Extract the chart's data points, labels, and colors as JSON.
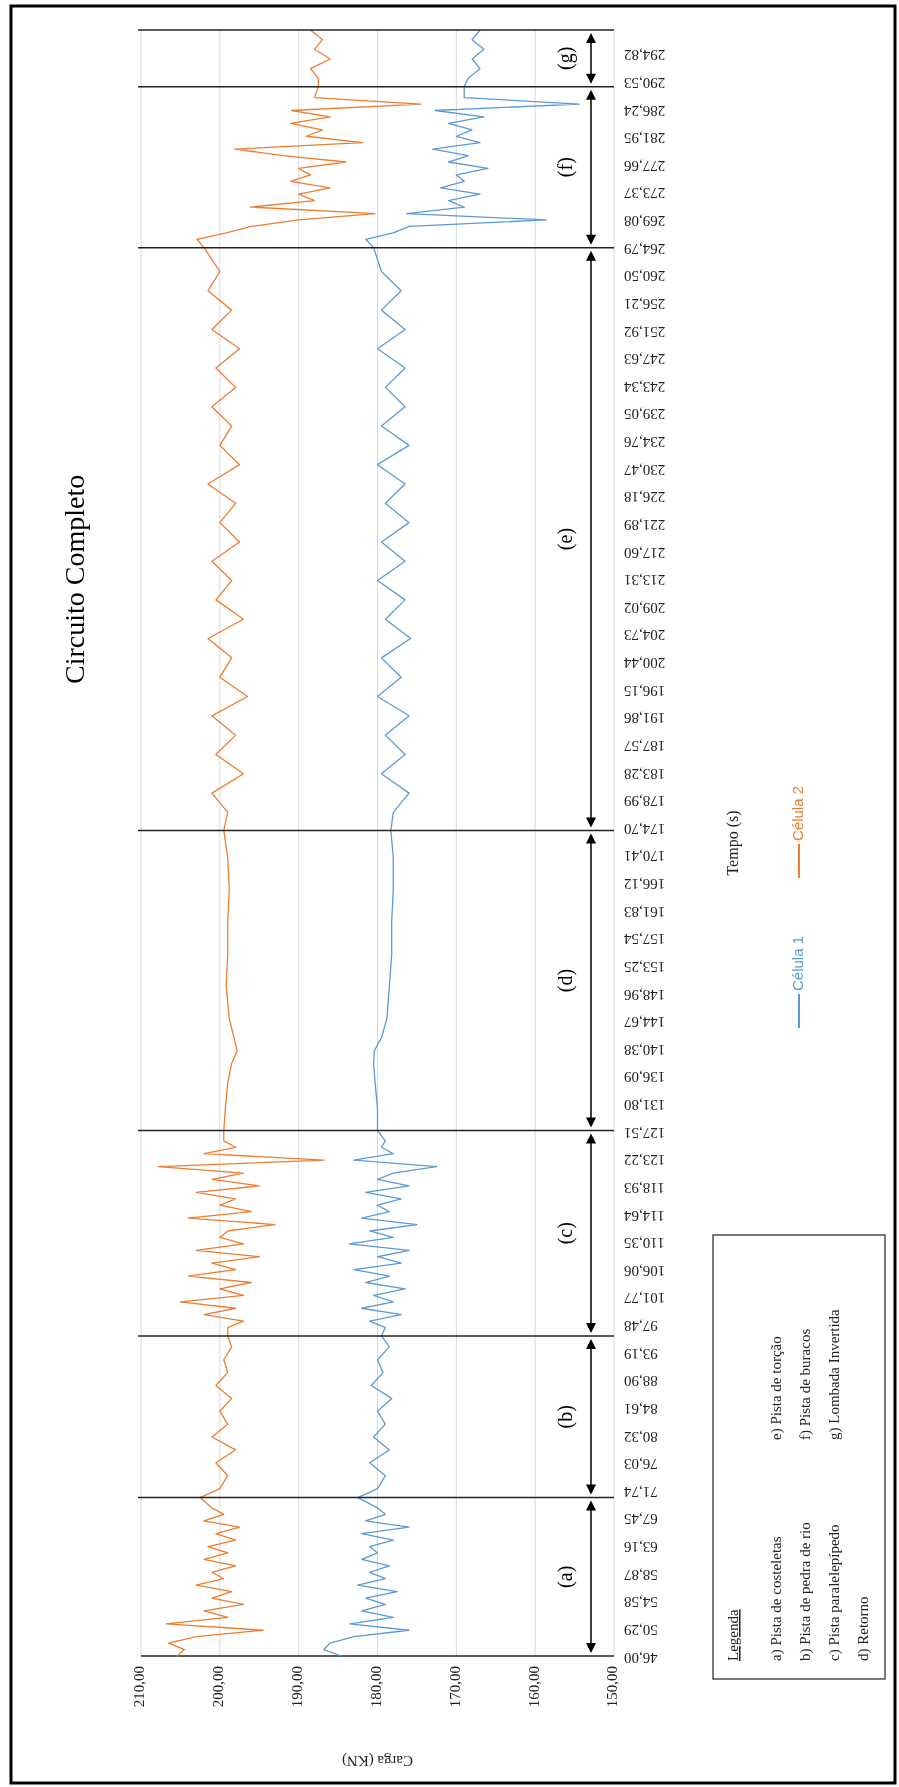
{
  "chart_data": {
    "type": "line",
    "title": "Circuito Completo",
    "xlabel": "Carga (KN)",
    "ylabel": "Tempo (s)",
    "xlim": [
      210,
      150
    ],
    "ylim": [
      46,
      298.5
    ],
    "xticks": [
      {
        "value": 210,
        "label": "210,00"
      },
      {
        "value": 200,
        "label": "200,00"
      },
      {
        "value": 190,
        "label": "190,00"
      },
      {
        "value": 180,
        "label": "180,00"
      },
      {
        "value": 170,
        "label": "170,00"
      },
      {
        "value": 160,
        "label": "160,00"
      },
      {
        "value": 150,
        "label": "150,00"
      }
    ],
    "yticks": [
      {
        "value": 46,
        "label": "46,00"
      },
      {
        "value": 50.29,
        "label": "50,29"
      },
      {
        "value": 54.58,
        "label": "54,58"
      },
      {
        "value": 58.87,
        "label": "58,87"
      },
      {
        "value": 63.16,
        "label": "63,16"
      },
      {
        "value": 67.45,
        "label": "67,45"
      },
      {
        "value": 71.74,
        "label": "71,74"
      },
      {
        "value": 76.03,
        "label": "76,03"
      },
      {
        "value": 80.32,
        "label": "80,32"
      },
      {
        "value": 84.61,
        "label": "84,61"
      },
      {
        "value": 88.9,
        "label": "88,90"
      },
      {
        "value": 93.19,
        "label": "93,19"
      },
      {
        "value": 97.48,
        "label": "97,48"
      },
      {
        "value": 101.77,
        "label": "101,77"
      },
      {
        "value": 106.06,
        "label": "106,06"
      },
      {
        "value": 110.35,
        "label": "110,35"
      },
      {
        "value": 114.64,
        "label": "114,64"
      },
      {
        "value": 118.93,
        "label": "118,93"
      },
      {
        "value": 123.22,
        "label": "123,22"
      },
      {
        "value": 127.51,
        "label": "127,51"
      },
      {
        "value": 131.8,
        "label": "131,80"
      },
      {
        "value": 136.09,
        "label": "136,09"
      },
      {
        "value": 140.38,
        "label": "140,38"
      },
      {
        "value": 144.67,
        "label": "144,67"
      },
      {
        "value": 148.96,
        "label": "148,96"
      },
      {
        "value": 153.25,
        "label": "153,25"
      },
      {
        "value": 157.54,
        "label": "157,54"
      },
      {
        "value": 161.83,
        "label": "161,83"
      },
      {
        "value": 166.12,
        "label": "166,12"
      },
      {
        "value": 170.41,
        "label": "170,41"
      },
      {
        "value": 174.7,
        "label": "174,70"
      },
      {
        "value": 178.99,
        "label": "178,99"
      },
      {
        "value": 183.28,
        "label": "183,28"
      },
      {
        "value": 187.57,
        "label": "187,57"
      },
      {
        "value": 191.86,
        "label": "191,86"
      },
      {
        "value": 196.15,
        "label": "196,15"
      },
      {
        "value": 200.44,
        "label": "200,44"
      },
      {
        "value": 204.73,
        "label": "204,73"
      },
      {
        "value": 209.02,
        "label": "209,02"
      },
      {
        "value": 213.31,
        "label": "213,31"
      },
      {
        "value": 217.6,
        "label": "217,60"
      },
      {
        "value": 221.89,
        "label": "221,89"
      },
      {
        "value": 226.18,
        "label": "226,18"
      },
      {
        "value": 230.47,
        "label": "230,47"
      },
      {
        "value": 234.76,
        "label": "234,76"
      },
      {
        "value": 239.05,
        "label": "239,05"
      },
      {
        "value": 243.34,
        "label": "243,34"
      },
      {
        "value": 247.63,
        "label": "247,63"
      },
      {
        "value": 251.92,
        "label": "251,92"
      },
      {
        "value": 256.21,
        "label": "256,21"
      },
      {
        "value": 260.5,
        "label": "260,50"
      },
      {
        "value": 264.79,
        "label": "264,79"
      },
      {
        "value": 269.08,
        "label": "269,08"
      },
      {
        "value": 273.37,
        "label": "273,37"
      },
      {
        "value": 277.66,
        "label": "277,66"
      },
      {
        "value": 281.95,
        "label": "281,95"
      },
      {
        "value": 286.24,
        "label": "286,24"
      },
      {
        "value": 290.53,
        "label": "290,53"
      },
      {
        "value": 294.82,
        "label": "294,82"
      }
    ],
    "grid": "x",
    "legend": "right",
    "series": [
      {
        "name": "Célula 1",
        "color": "#5b9bd5",
        "x": [
          184.6,
          186.8,
          186,
          183,
          176,
          183.5,
          178,
          182,
          179,
          181.5,
          177.5,
          182.5,
          179,
          181,
          178.5,
          182,
          180,
          181,
          178,
          182,
          176,
          181.5,
          179,
          180,
          182.5,
          180,
          179,
          181,
          178.5,
          180.5,
          179,
          180,
          178.2,
          180.8,
          179.3,
          180,
          178.5,
          179.5,
          179,
          181,
          177,
          182,
          178,
          180.5,
          176.5,
          181.5,
          178.5,
          183,
          177,
          180,
          176,
          183.6,
          178,
          181,
          175,
          182,
          178.5,
          180,
          177,
          181.5,
          176,
          180,
          178,
          172.5,
          183,
          178,
          179.5,
          179,
          180,
          180,
          180.3,
          180.5,
          180.4,
          179.5,
          178.8,
          178.5,
          178.2,
          178.2,
          178,
          178,
          178.3,
          178,
          176,
          179.5,
          176.5,
          179,
          176,
          180,
          177,
          179.5,
          175.8,
          179,
          176.5,
          180,
          176.5,
          179.5,
          176,
          179,
          176.5,
          180,
          176,
          179.5,
          176.5,
          179,
          176.5,
          180,
          176.5,
          179.5,
          177,
          179.5,
          180.5,
          181.5,
          178,
          176,
          158.6,
          176.3,
          169,
          171,
          167,
          172,
          169,
          170,
          166,
          171,
          168.5,
          173,
          167,
          170,
          168,
          171,
          166.5,
          172.7,
          154.4,
          169,
          169,
          168.5,
          167,
          168,
          166.5,
          168,
          167
        ],
        "values": [
          46,
          47,
          48,
          49,
          50,
          51,
          52,
          53,
          54,
          55,
          56,
          57,
          58,
          59,
          60,
          61,
          62,
          63,
          64,
          65,
          66,
          67,
          68,
          69,
          70.6,
          72,
          74,
          76,
          78,
          80,
          82,
          84,
          86,
          88,
          90,
          92,
          94,
          95.7,
          97,
          98,
          99,
          100,
          101,
          102,
          103,
          104,
          105,
          106,
          107,
          108,
          109,
          110,
          111,
          112,
          113,
          114,
          115,
          116,
          117,
          118,
          119,
          120,
          121,
          122,
          123,
          124,
          125,
          126,
          127.6,
          131,
          135,
          138,
          140,
          142,
          145,
          150,
          155,
          160,
          165,
          170,
          174.2,
          177,
          180,
          183,
          186,
          189,
          192,
          195,
          198,
          201,
          204,
          207,
          210,
          213,
          216,
          219,
          222,
          225,
          228,
          231,
          234,
          237,
          240,
          243,
          246,
          249,
          252,
          255,
          258,
          261,
          264.7,
          266,
          267,
          268,
          269,
          270,
          271,
          272,
          273,
          274,
          275,
          276,
          277,
          278,
          279,
          280,
          281,
          282,
          283,
          284,
          285,
          286,
          287,
          288,
          289.7,
          291,
          292.5,
          294,
          295.5,
          297,
          298.5
        ]
      },
      {
        "name": "Célula 2",
        "color": "#ed7d31",
        "x": [
          205.4,
          204.5,
          206.5,
          203,
          194.5,
          206.8,
          199,
          202,
          197,
          201,
          198.5,
          203,
          199.5,
          201,
          198,
          202,
          199,
          201.5,
          198,
          200.5,
          197.5,
          202,
          199.5,
          201,
          202.5,
          200,
          199,
          200.5,
          198,
          201,
          199,
          200,
          198.5,
          200.5,
          199,
          199.5,
          198.5,
          199,
          199,
          197,
          202,
          198,
          205,
          197,
          200,
          196,
          204,
          198,
          201,
          195,
          203,
          197,
          200,
          199,
          193,
          204,
          196,
          200,
          198,
          203,
          195,
          201,
          197,
          207.8,
          186.8,
          202,
          198,
          199.5,
          199.5,
          199.3,
          199,
          198.5,
          197.8,
          198.2,
          198.8,
          199.2,
          199,
          199,
          198.8,
          199,
          199.5,
          199,
          201,
          197,
          200.5,
          198,
          201,
          196.5,
          200,
          198.5,
          201.5,
          197,
          200.5,
          198.5,
          201,
          197.5,
          200,
          198,
          201.5,
          197.5,
          200,
          198.5,
          201,
          198,
          200.5,
          197.5,
          201,
          198.5,
          201.5,
          200,
          202,
          202.9,
          199.2,
          196,
          190,
          180.3,
          196.1,
          188,
          190,
          186,
          191,
          188.5,
          190,
          184,
          192,
          198.1,
          181.9,
          189,
          187,
          191,
          186,
          190.9,
          174.5,
          188,
          187.5,
          187.5,
          188.5,
          186,
          188,
          187,
          188.5
        ],
        "values": [
          46,
          47,
          48,
          49,
          50,
          51,
          52,
          53,
          54,
          55,
          56,
          57,
          58,
          59,
          60,
          61,
          62,
          63,
          64,
          65,
          66,
          67,
          68,
          69,
          70.6,
          72,
          74,
          76,
          78,
          80,
          82,
          84,
          86,
          88,
          90,
          92,
          94,
          95.7,
          97,
          98,
          99,
          100,
          101,
          102,
          103,
          104,
          105,
          106,
          107,
          108,
          109,
          110,
          111,
          112,
          113,
          114,
          115,
          116,
          117,
          118,
          119,
          120,
          121,
          122,
          123,
          124,
          125,
          126,
          127.6,
          131,
          135,
          138,
          140,
          142,
          145,
          150,
          155,
          160,
          165,
          170,
          174.2,
          177,
          180,
          183,
          186,
          189,
          192,
          195,
          198,
          201,
          204,
          207,
          210,
          213,
          216,
          219,
          222,
          225,
          228,
          231,
          234,
          237,
          240,
          243,
          246,
          249,
          252,
          255,
          258,
          261,
          264.7,
          266,
          267,
          268,
          269,
          270,
          271,
          272,
          273,
          274,
          275,
          276,
          277,
          278,
          279,
          280,
          281,
          282,
          283,
          284,
          285,
          286,
          287,
          288,
          289.7,
          291,
          292.5,
          294,
          295.5,
          297,
          298.5
        ]
      }
    ],
    "ref_lines": [
      {
        "axis": "y",
        "value": 70.6
      },
      {
        "axis": "y",
        "value": 95.7
      },
      {
        "axis": "y",
        "value": 127.6
      },
      {
        "axis": "y",
        "value": 174.2
      },
      {
        "axis": "y",
        "value": 264.7
      },
      {
        "axis": "y",
        "value": 289.7
      }
    ],
    "annotations": [
      "(a)",
      "(b)",
      "(c)",
      "(d)",
      "(e)",
      "(f)",
      "(g)",
      "Legenda",
      "a) Pista de costeletas",
      "b) Pista de pedra de rio",
      "c) Pista paralelepípedo",
      "d) Retorno",
      "e) Pista de torção",
      "f) Pista de buracos",
      "g) Lombada Invertida"
    ]
  }
}
